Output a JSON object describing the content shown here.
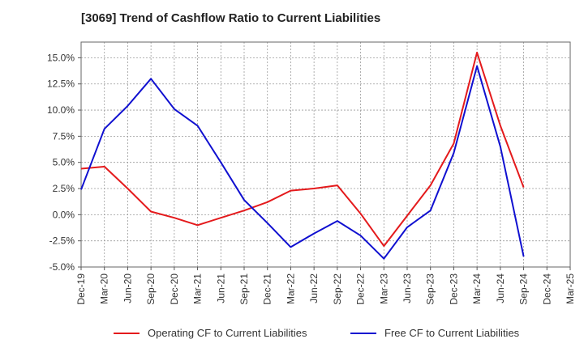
{
  "chart_data": {
    "type": "line",
    "title": "[3069]  Trend of Cashflow Ratio to Current Liabilities",
    "xlabel": "",
    "ylabel": "",
    "categories": [
      "Dec-19",
      "Mar-20",
      "Jun-20",
      "Sep-20",
      "Dec-20",
      "Mar-21",
      "Jun-21",
      "Sep-21",
      "Dec-21",
      "Mar-22",
      "Jun-22",
      "Sep-22",
      "Dec-22",
      "Mar-23",
      "Jun-23",
      "Sep-23",
      "Dec-23",
      "Mar-24",
      "Jun-24",
      "Sep-24",
      "Dec-24",
      "Mar-25"
    ],
    "tick_labels": [
      "Dec-19",
      "Mar-20",
      "Jun-20",
      "Sep-20",
      "Dec-20",
      "Mar-21",
      "Jun-21",
      "Sep-21",
      "Dec-21",
      "Mar-22",
      "Jun-22",
      "Sep-22",
      "Dec-22",
      "Mar-23",
      "Jun-23",
      "Sep-23",
      "Dec-23",
      "Mar-24",
      "Jun-24",
      "Sep-24",
      "Dec-24",
      "Mar-25"
    ],
    "y_ticks": [
      "15.0%",
      "12.5%",
      "10.0%",
      "7.5%",
      "5.0%",
      "2.5%",
      "0.0%",
      "-2.5%",
      "-5.0%"
    ],
    "y_tick_values": [
      15.0,
      12.5,
      10.0,
      7.5,
      5.0,
      2.5,
      0.0,
      -2.5,
      -5.0
    ],
    "ylim": [
      -5.0,
      16.5
    ],
    "grid": true,
    "legend_position": "bottom",
    "series": [
      {
        "name": "Operating CF to Current Liabilities",
        "color": "#e41a1c",
        "values": [
          4.4,
          4.6,
          2.5,
          0.3,
          -0.3,
          -1.0,
          -0.3,
          0.4,
          1.2,
          2.3,
          2.5,
          2.8,
          0.1,
          -3.0,
          -0.1,
          2.8,
          6.8,
          15.5,
          8.5,
          2.6,
          null,
          null
        ]
      },
      {
        "name": "Free CF to Current Liabilities",
        "color": "#1010d0",
        "values": [
          2.4,
          8.2,
          10.4,
          13.0,
          10.1,
          8.5,
          5.0,
          1.4,
          -0.8,
          -3.1,
          -1.8,
          -0.6,
          -2.0,
          -4.2,
          -1.2,
          0.4,
          5.9,
          14.2,
          6.5,
          -4.0,
          null,
          null
        ]
      }
    ]
  }
}
